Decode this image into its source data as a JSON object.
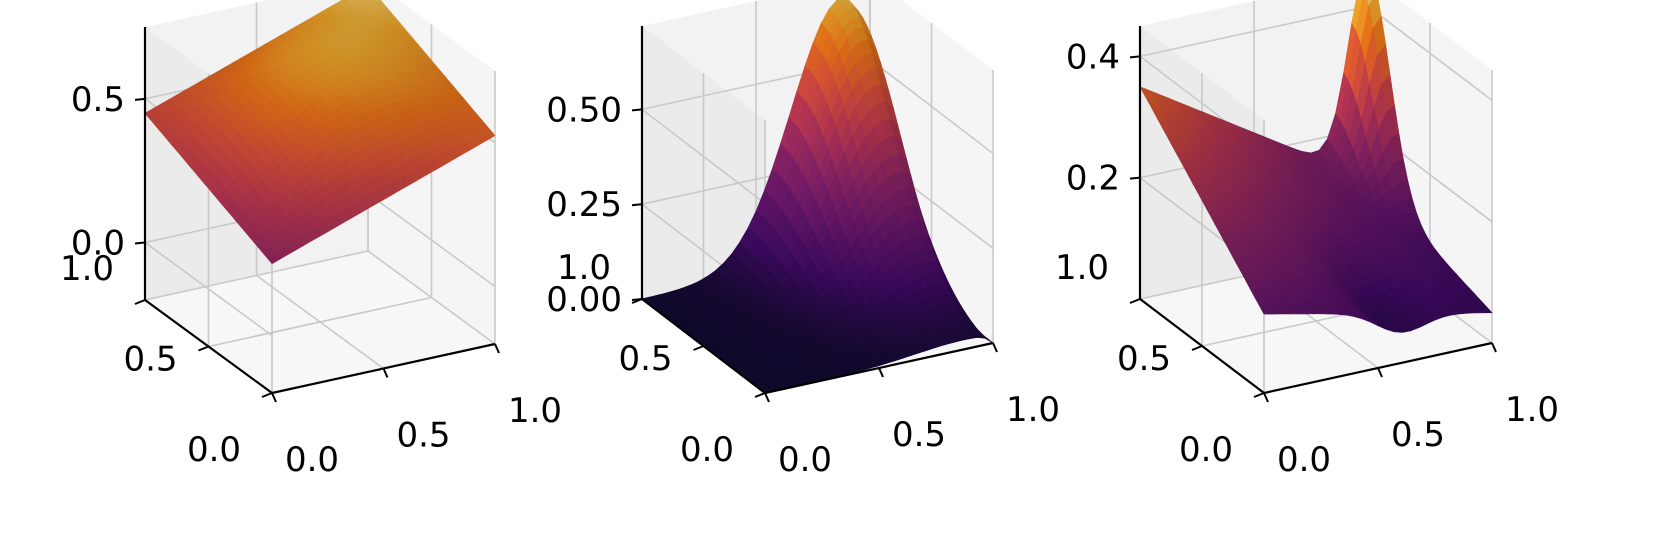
{
  "chart_data": [
    {
      "type": "surface",
      "title": "",
      "xlabel": "",
      "ylabel": "",
      "zlabel": "",
      "x_ticks": [
        "0.0",
        "0.5",
        "1.0"
      ],
      "y_ticks": [
        "0.0",
        "0.5",
        "1.0"
      ],
      "z_ticks": [
        "0.0",
        "0.5"
      ],
      "xlim": [
        0,
        1
      ],
      "ylim": [
        0,
        1
      ],
      "zlim": [
        -0.2,
        0.75
      ],
      "z_tick_values": [
        0.0,
        0.5
      ],
      "corner_values": {
        "x0y0": -0.2,
        "x1y0": 0.35,
        "x0y1": 0.2,
        "x1y1": 0.72
      },
      "colormap": "inferno",
      "grid": true
    },
    {
      "type": "surface",
      "title": "",
      "xlabel": "",
      "ylabel": "",
      "zlabel": "",
      "x_ticks": [
        "0.0",
        "0.5",
        "1.0"
      ],
      "y_ticks": [
        "0.0",
        "0.5",
        "1.0"
      ],
      "z_ticks": [
        "0.00",
        "0.25",
        "0.50"
      ],
      "xlim": [
        0,
        1
      ],
      "ylim": [
        0,
        1
      ],
      "zlim": [
        0,
        0.72
      ],
      "z_tick_values": [
        0.0,
        0.25,
        0.5
      ],
      "peak": {
        "x": 0.9,
        "y": 0.95,
        "z": 0.68
      },
      "colormap": "inferno",
      "grid": true
    },
    {
      "type": "surface",
      "title": "",
      "xlabel": "",
      "ylabel": "",
      "zlabel": "",
      "x_ticks": [
        "0.0",
        "0.5",
        "1.0"
      ],
      "y_ticks": [
        "0.0",
        "0.5",
        "1.0"
      ],
      "z_ticks": [
        "0.2",
        "0.4"
      ],
      "xlim": [
        0,
        1
      ],
      "ylim": [
        0,
        1
      ],
      "zlim": [
        0,
        0.45
      ],
      "z_tick_values": [
        0.2,
        0.4
      ],
      "max_value": 0.42,
      "colormap": "inferno",
      "grid": true
    }
  ]
}
